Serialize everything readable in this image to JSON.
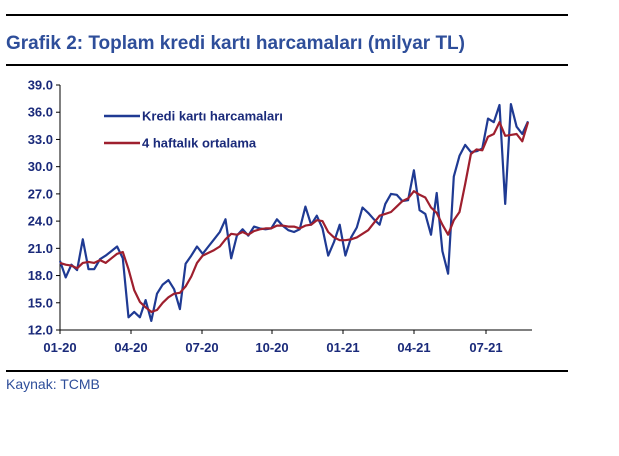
{
  "header": {
    "title": "Grafik 2: Toplam kredi kartı harcamaları (milyar TL)"
  },
  "footer": {
    "source": "Kaynak: TCMB"
  },
  "chart_data": {
    "type": "line",
    "title": "Grafik 2: Toplam kredi kartı harcamaları (milyar TL)",
    "xlabel": "",
    "ylabel": "",
    "ylim": [
      12.0,
      39.0
    ],
    "yticks": [
      "39.0",
      "36.0",
      "33.0",
      "30.0",
      "27.0",
      "24.0",
      "21.0",
      "18.0",
      "15.0",
      "12.0"
    ],
    "xticks": [
      "01-20",
      "04-20",
      "07-20",
      "10-20",
      "01-21",
      "04-21",
      "07-21"
    ],
    "grid": false,
    "legend_position": "top-left",
    "colors": {
      "series1": "#1F3A93",
      "series2": "#9E1F2E"
    },
    "series": [
      {
        "name": "Kredi kartı harcamaları",
        "values": [
          19.6,
          17.8,
          19.2,
          18.6,
          22.0,
          18.7,
          18.7,
          19.8,
          20.2,
          20.7,
          21.2,
          19.9,
          13.4,
          14.0,
          13.4,
          15.3,
          13.0,
          16.0,
          17.0,
          17.5,
          16.5,
          14.3,
          19.3,
          20.2,
          21.2,
          20.4,
          21.2,
          22.0,
          22.8,
          24.2,
          19.9,
          22.4,
          23.1,
          22.4,
          23.4,
          23.2,
          23.1,
          23.2,
          24.2,
          23.5,
          23.0,
          22.8,
          23.1,
          25.6,
          23.6,
          24.6,
          23.2,
          20.2,
          21.7,
          23.6,
          20.2,
          22.2,
          23.3,
          25.5,
          24.9,
          24.2,
          23.6,
          25.9,
          27.0,
          26.9,
          26.2,
          26.3,
          29.6,
          25.2,
          24.8,
          22.5,
          27.1,
          20.7,
          18.2,
          28.9,
          31.2,
          32.4,
          31.6,
          31.7,
          32.0,
          35.3,
          34.9,
          36.8,
          25.9,
          36.9,
          34.4,
          33.6,
          35.0
        ]
      },
      {
        "name": "4 haftalık ortalama",
        "values": [
          19.4,
          19.2,
          19.1,
          18.8,
          19.4,
          19.5,
          19.4,
          19.7,
          19.4,
          19.9,
          20.4,
          20.6,
          18.7,
          16.4,
          15.1,
          14.5,
          14.0,
          14.2,
          15.0,
          15.6,
          16.0,
          16.1,
          16.8,
          17.9,
          19.4,
          20.2,
          20.5,
          20.8,
          21.2,
          22.0,
          22.6,
          22.5,
          22.8,
          22.5,
          22.9,
          23.1,
          23.2,
          23.2,
          23.5,
          23.5,
          23.4,
          23.4,
          23.2,
          23.5,
          23.6,
          24.1,
          24.0,
          22.8,
          22.2,
          21.9,
          21.9,
          22.0,
          22.2,
          22.6,
          23.0,
          23.8,
          24.6,
          24.8,
          25.0,
          25.6,
          26.2,
          26.5,
          27.3,
          26.9,
          26.6,
          25.5,
          24.9,
          23.6,
          22.5,
          24.1,
          25.0,
          28.1,
          31.4,
          31.9,
          31.8,
          33.3,
          33.6,
          34.9,
          33.4,
          33.5,
          33.6,
          32.8,
          34.9
        ]
      }
    ]
  }
}
